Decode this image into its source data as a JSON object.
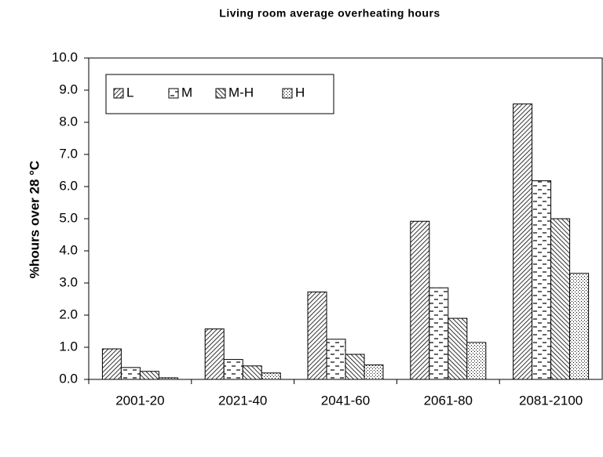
{
  "chart_data": {
    "type": "bar",
    "title": "Living room average overheating hours",
    "y_label": "%hours over 28 °C",
    "categories": [
      "2001-20",
      "2021-40",
      "2041-60",
      "2061-80",
      "2081-2100"
    ],
    "series": [
      {
        "name": "L",
        "pattern": "diagonal",
        "values": [
          0.95,
          1.57,
          2.72,
          4.92,
          8.57
        ]
      },
      {
        "name": "M",
        "pattern": "dashes",
        "values": [
          0.37,
          0.62,
          1.25,
          2.85,
          6.18
        ]
      },
      {
        "name": "M-H",
        "pattern": "backdiagonal",
        "values": [
          0.25,
          0.42,
          0.78,
          1.9,
          5.0
        ]
      },
      {
        "name": "H",
        "pattern": "dots",
        "values": [
          0.05,
          0.2,
          0.45,
          1.15,
          3.3
        ]
      }
    ],
    "ylim": [
      0,
      10
    ],
    "yticks": [
      {
        "value": 0,
        "label": "0.0"
      },
      {
        "value": 1,
        "label": "1.0"
      },
      {
        "value": 2,
        "label": "2.0"
      },
      {
        "value": 3,
        "label": "3.0"
      },
      {
        "value": 4,
        "label": "4.0"
      },
      {
        "value": 5,
        "label": "5.0"
      },
      {
        "value": 6,
        "label": "6.0"
      },
      {
        "value": 7,
        "label": "7.0"
      },
      {
        "value": 8,
        "label": "8.0"
      },
      {
        "value": 9,
        "label": "9.0"
      },
      {
        "value": 10,
        "label": "10.0"
      }
    ],
    "legend": "top-left"
  }
}
